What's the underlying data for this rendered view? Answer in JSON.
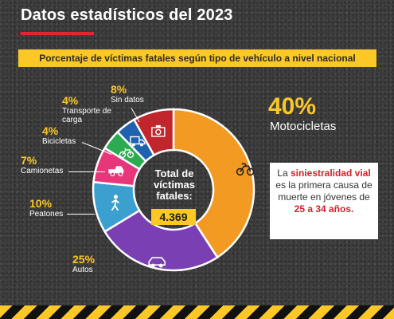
{
  "header": {
    "title": "Datos estadísticos del 2023",
    "subtitle": "Porcentaje de víctimas fatales según tipo de vehículo a nivel nacional"
  },
  "chart_data": {
    "type": "pie",
    "categories": [
      "Motocicletas",
      "Autos",
      "Peatones",
      "Camionetas",
      "Bicicletas",
      "Transporte de carga",
      "Sin datos"
    ],
    "values": [
      40,
      25,
      10,
      7,
      4,
      4,
      8
    ],
    "value_labels": [
      "40%",
      "25%",
      "10%",
      "7%",
      "4%",
      "4%",
      "8%"
    ],
    "colors": [
      "#f39a23",
      "#7b3fb4",
      "#3b9fcf",
      "#e8367a",
      "#2cab50",
      "#1f62b0",
      "#c0262c"
    ],
    "icons": [
      "motorcycle-icon",
      "car-icon",
      "pedestrian-icon",
      "pickup-icon",
      "bicycle-icon",
      "truck-icon",
      "camera-icon"
    ],
    "center": {
      "label": "Total de víctimas fatales:",
      "value": "4.369"
    }
  },
  "note": {
    "part1": "La ",
    "highlight1": "siniestralidad vial",
    "part2": " es la primera causa de muerte en jóvenes de ",
    "highlight2": "25 a 34 años."
  },
  "colors": {
    "accent": "#fbc826",
    "brand_red": "#e3262b"
  }
}
